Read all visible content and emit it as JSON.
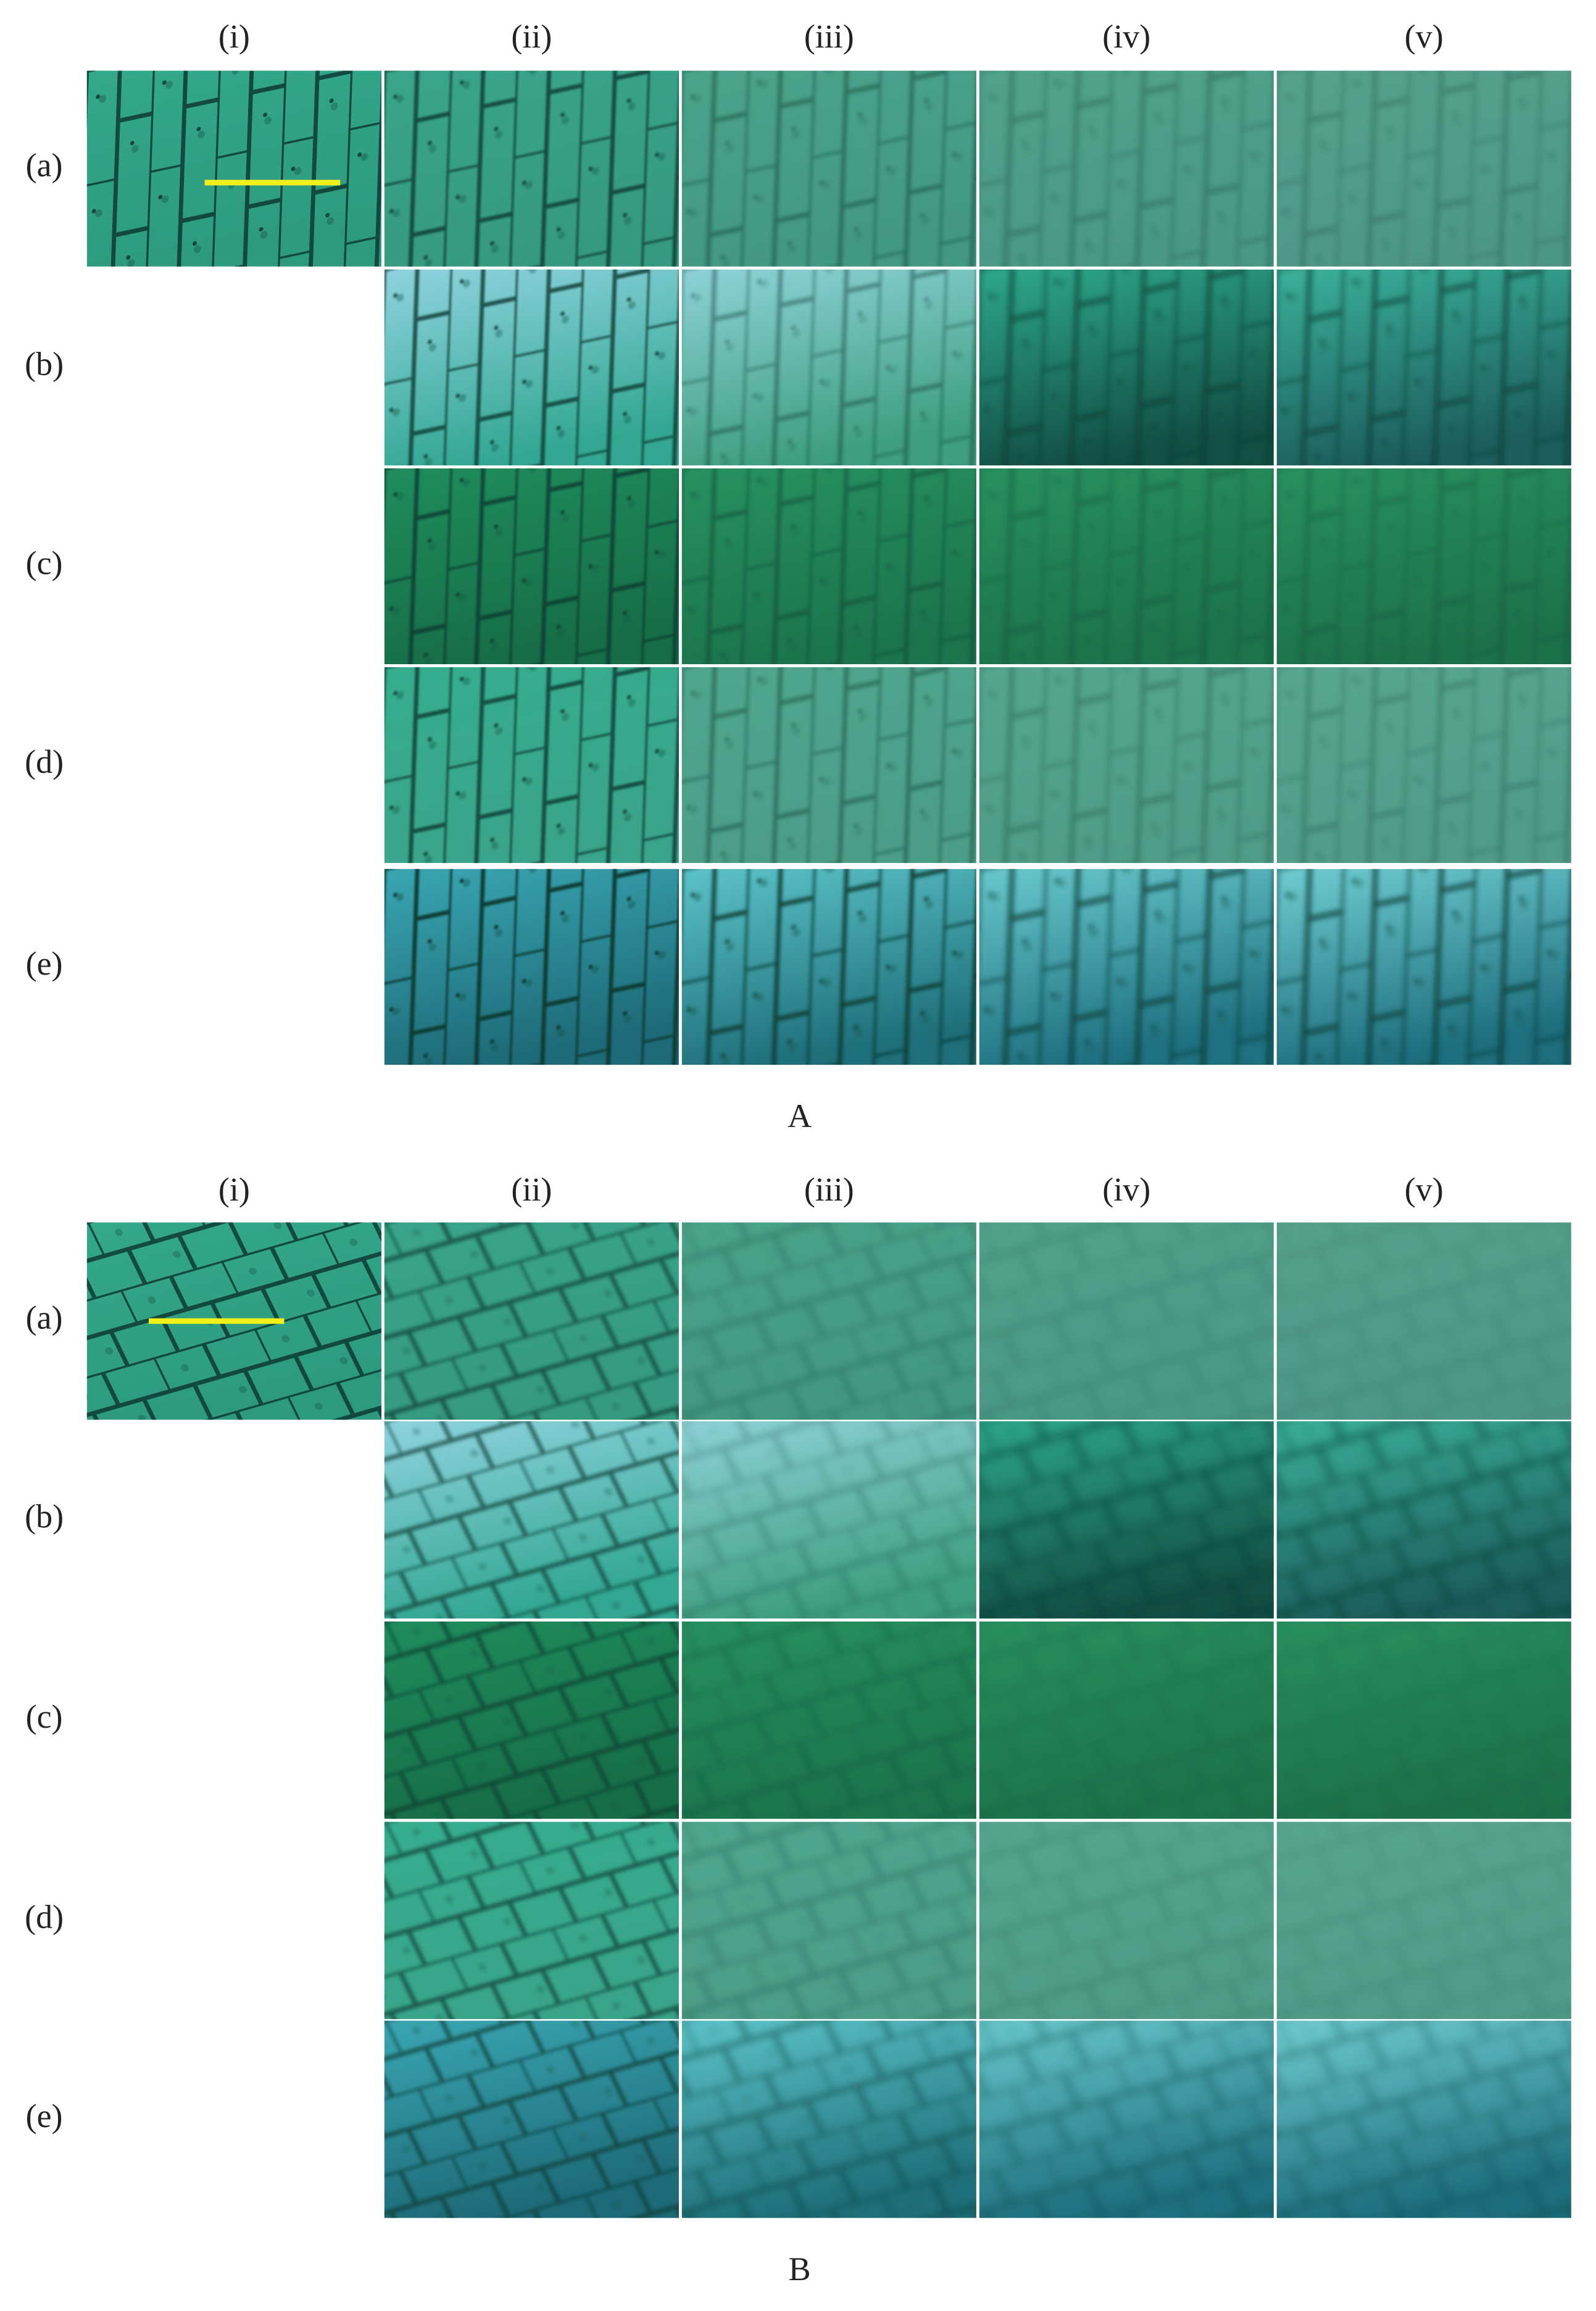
{
  "panels": [
    {
      "label": "A",
      "columns": [
        "(i)",
        "(ii)",
        "(iii)",
        "(iv)",
        "(v)"
      ],
      "rows": [
        "(a)",
        "(b)",
        "(c)",
        "(d)",
        "(e)"
      ]
    },
    {
      "label": "B",
      "columns": [
        "(i)",
        "(ii)",
        "(iii)",
        "(iv)",
        "(v)"
      ],
      "rows": [
        "(a)",
        "(b)",
        "(c)",
        "(d)",
        "(e)"
      ]
    }
  ]
}
